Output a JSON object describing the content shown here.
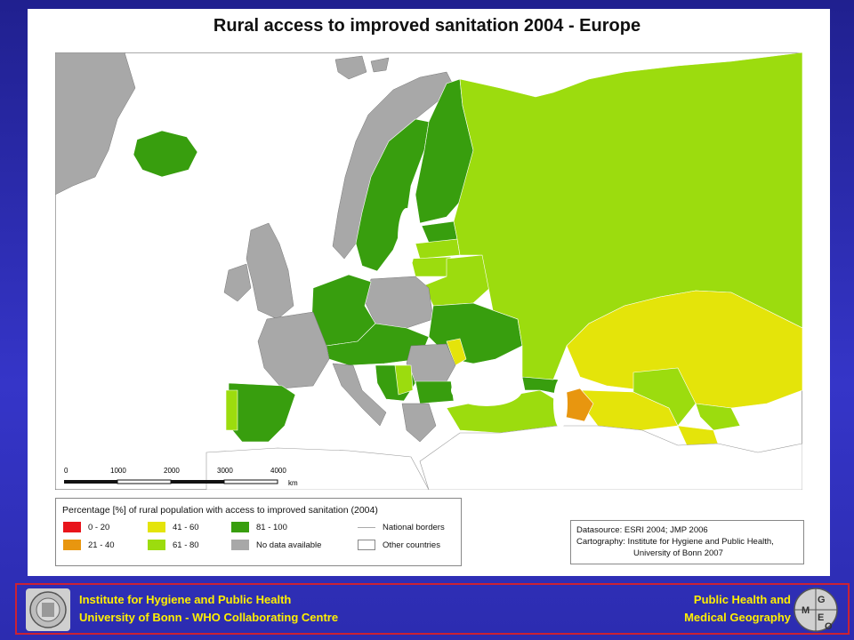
{
  "title": "Rural access to improved sanitation 2004 - Europe",
  "scale": {
    "ticks": [
      "0",
      "1000",
      "2000",
      "3000",
      "4000"
    ],
    "unit": "km"
  },
  "legend": {
    "title": "Percentage [%] of rural population with access to improved sanitation (2004)",
    "items": [
      {
        "label": "0 - 20",
        "color": "#e8141b"
      },
      {
        "label": "21 - 40",
        "color": "#e8960f"
      },
      {
        "label": "41 - 60",
        "color": "#e4e40a"
      },
      {
        "label": "61 - 80",
        "color": "#9cdc0e"
      },
      {
        "label": "81 - 100",
        "color": "#389e0e"
      },
      {
        "label": "No data available",
        "color": "#a8a8a8"
      }
    ],
    "lines": [
      {
        "label": "National borders"
      },
      {
        "label": "Other countries"
      }
    ]
  },
  "credits": {
    "line1": "Datasource:  ESRI 2004; JMP 2006",
    "line2": "Cartography: Institute for Hygiene and Public Health,",
    "line3": "University of Bonn 2007"
  },
  "footer": {
    "left_line1": "Institute for Hygiene and Public Health",
    "left_line2": "University of Bonn   -   WHO Collaborating Centre",
    "right_line1": "Public Health and",
    "right_line2": "Medical Geography",
    "logo_letters": [
      "G",
      "E",
      "M",
      "O"
    ]
  },
  "colors": {
    "background": "#2c2cb0",
    "footer_text": "#ffef00",
    "footer_border": "#cc2233",
    "sea": "#ffffff",
    "no_data": "#a8a8a8",
    "c81_100": "#389e0e",
    "c61_80": "#9cdc0e",
    "c41_60": "#e4e40a",
    "c21_40": "#e8960f"
  }
}
